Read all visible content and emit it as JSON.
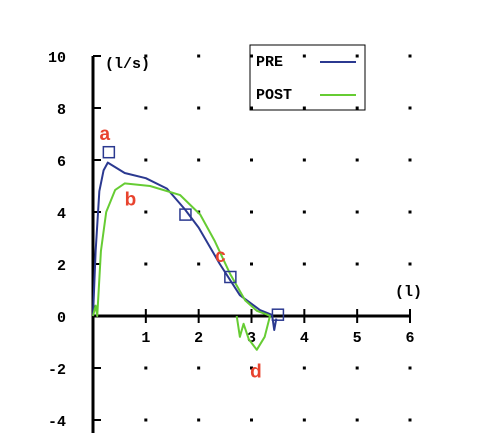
{
  "chart_data": {
    "type": "line",
    "ylabel": "(l/s)",
    "xlabel": "(l)",
    "xlim": [
      0,
      6
    ],
    "ylim": [
      -4,
      10
    ],
    "xticks": [
      1,
      2,
      3,
      4,
      5,
      6
    ],
    "yticks": [
      -4,
      -2,
      0,
      2,
      4,
      6,
      8,
      10
    ],
    "grid": true,
    "legend": "top",
    "series": [
      {
        "name": "PRE",
        "color": "#2b3990",
        "x": [
          0,
          0.05,
          0.12,
          0.2,
          0.28,
          0.4,
          0.6,
          1.0,
          1.4,
          1.74,
          2.0,
          2.4,
          2.78,
          3.16,
          3.39,
          3.43,
          3.47
        ],
        "values": [
          0,
          2.5,
          4.8,
          5.6,
          5.9,
          5.75,
          5.5,
          5.3,
          4.9,
          4.1,
          3.4,
          2.0,
          0.8,
          0.23,
          0.04,
          -0.54,
          -0.1
        ]
      },
      {
        "name": "POST",
        "color": "#66cc33",
        "x": [
          0,
          0.05,
          0.08,
          0.15,
          0.25,
          0.42,
          0.6,
          1.08,
          1.65,
          2.03,
          2.3,
          2.6,
          2.88,
          3.1,
          3.3,
          3.35,
          3.25,
          3.1,
          2.95,
          2.85,
          2.78,
          2.72
        ],
        "values": [
          0,
          0.4,
          0,
          2.5,
          4.0,
          4.85,
          5.1,
          5.0,
          4.65,
          3.9,
          2.9,
          1.6,
          0.6,
          0.2,
          0.05,
          0,
          -0.8,
          -1.3,
          -0.9,
          -0.3,
          -0.8,
          0
        ]
      }
    ],
    "markers": {
      "color": "#2b3990",
      "x": [
        0.3,
        1.75,
        2.6,
        3.5
      ],
      "values": [
        6.3,
        3.9,
        1.5,
        0.05
      ]
    },
    "annotations": [
      "a",
      "b",
      "c",
      "d"
    ],
    "annotation_color": "#e8432e"
  }
}
